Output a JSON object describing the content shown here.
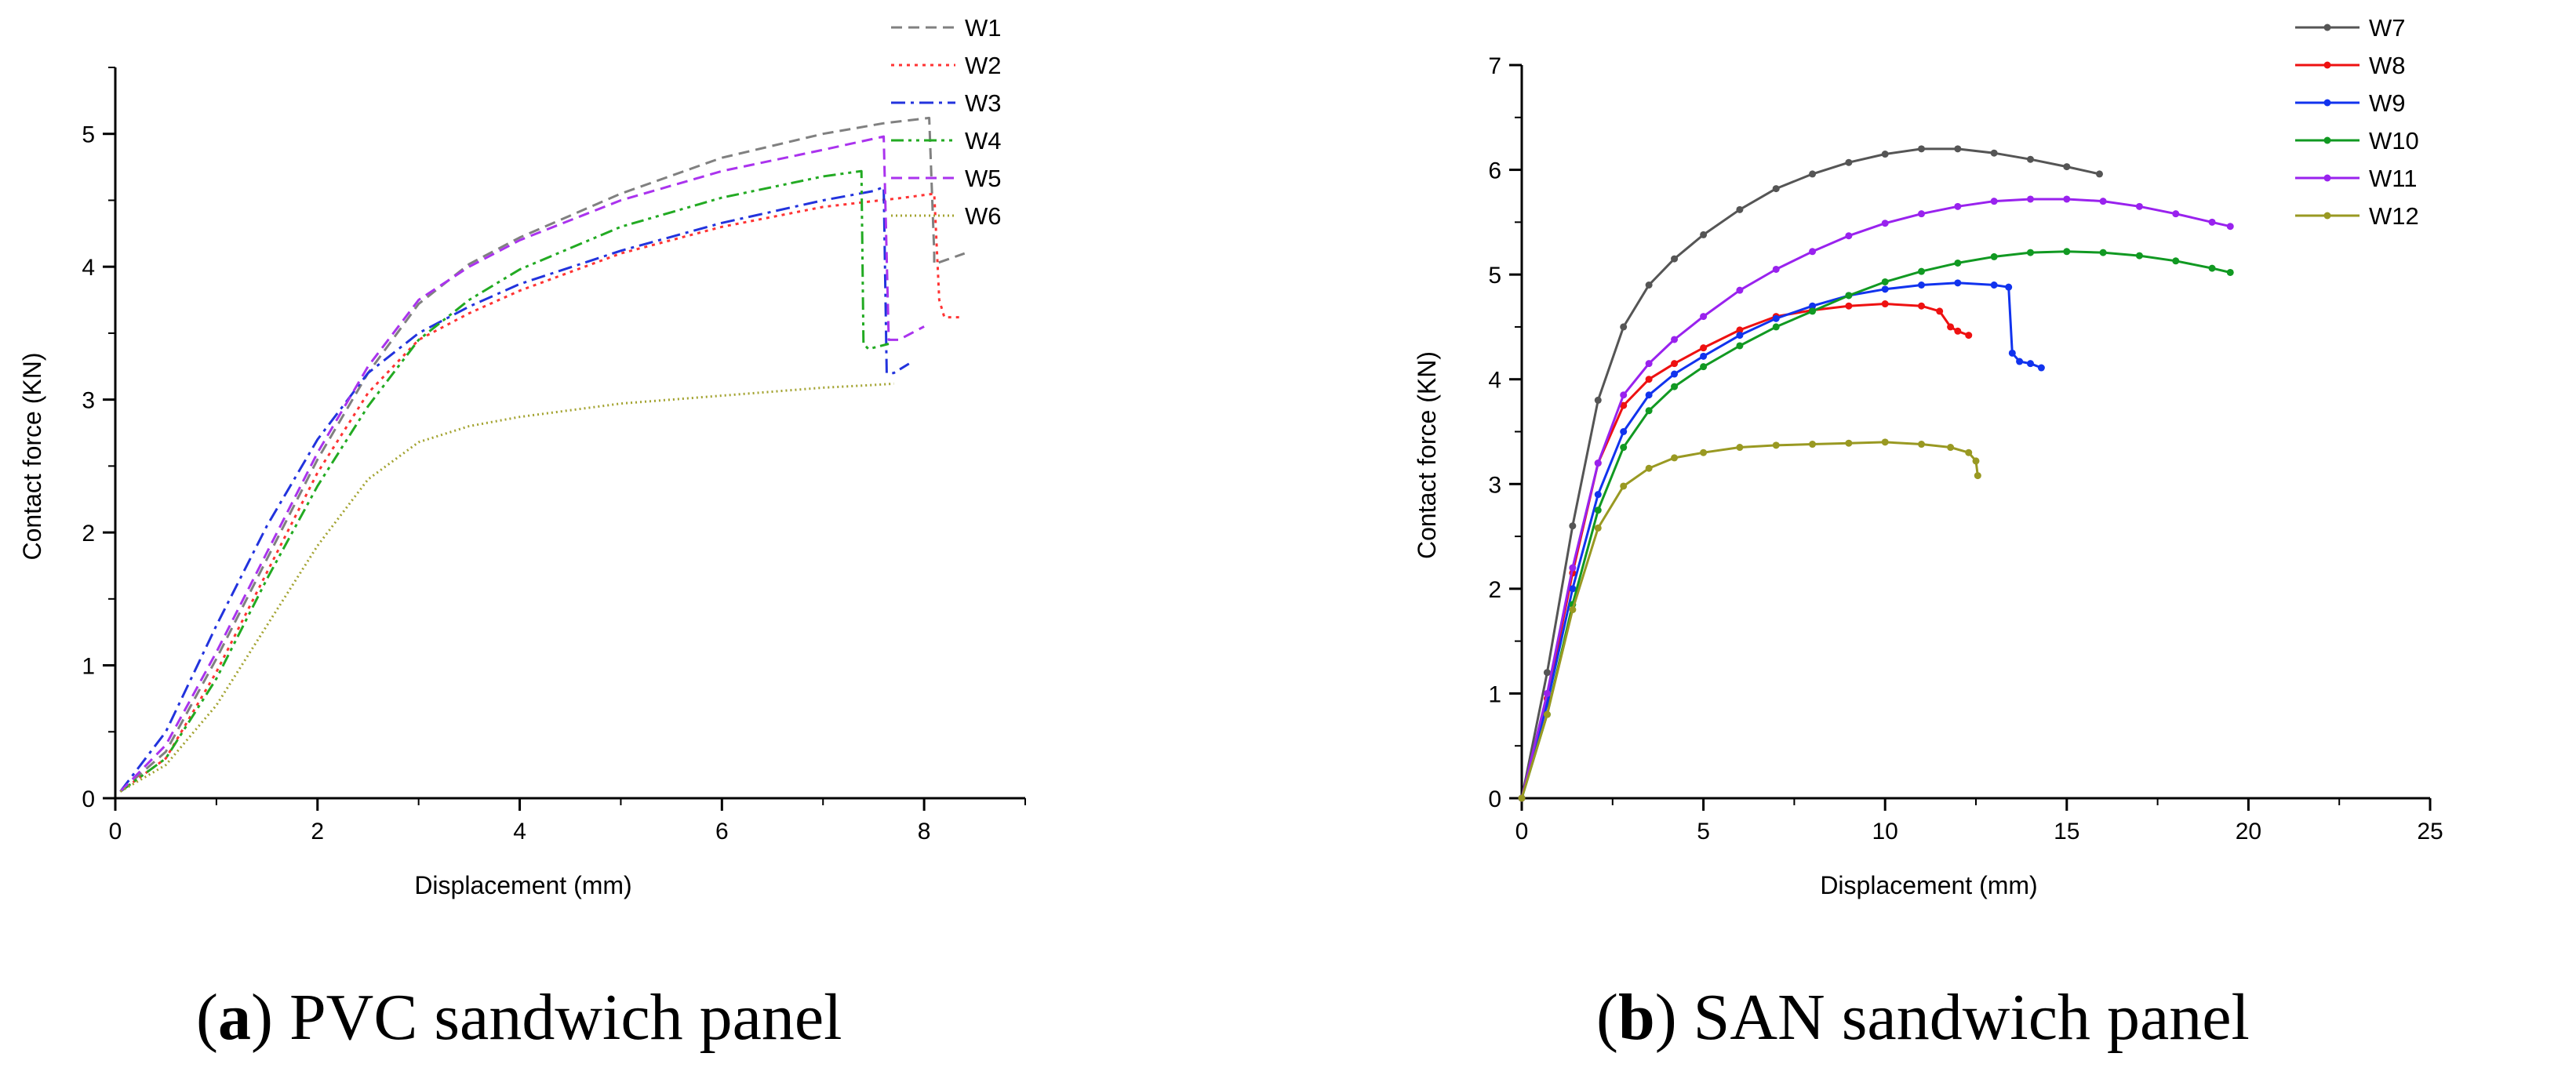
{
  "chart_data": [
    {
      "type": "line",
      "panel": "a",
      "caption": {
        "letter": "a",
        "text": ") PVC sandwich panel"
      },
      "xlabel": "Displacement (mm)",
      "ylabel": "Contact force (KN)",
      "xlim": [
        0,
        9
      ],
      "ylim": [
        0,
        5.5
      ],
      "xticks": [
        0,
        2,
        4,
        6,
        8
      ],
      "yticks": [
        0,
        1,
        2,
        3,
        4,
        5
      ],
      "legend_position": "top-right",
      "series": [
        {
          "name": "W1",
          "color": "#808080",
          "dash": "dashed",
          "marker": false,
          "x": [
            0.05,
            0.5,
            1.0,
            1.5,
            2.0,
            2.5,
            3.0,
            3.5,
            4.0,
            5.0,
            6.0,
            7.0,
            7.6,
            8.05,
            8.1,
            8.1,
            8.4
          ],
          "y": [
            0.05,
            0.35,
            1.05,
            1.8,
            2.55,
            3.2,
            3.72,
            4.02,
            4.22,
            4.55,
            4.82,
            5.0,
            5.08,
            5.12,
            4.1,
            4.02,
            4.1
          ]
        },
        {
          "name": "W2",
          "color": "#ff3333",
          "dash": "dotted",
          "marker": false,
          "x": [
            0.05,
            0.5,
            1.0,
            1.5,
            2.0,
            2.5,
            3.0,
            3.5,
            4.0,
            5.0,
            6.0,
            7.0,
            7.8,
            8.1,
            8.15,
            8.2,
            8.35
          ],
          "y": [
            0.05,
            0.3,
            0.95,
            1.7,
            2.45,
            3.05,
            3.45,
            3.65,
            3.82,
            4.1,
            4.3,
            4.45,
            4.52,
            4.55,
            3.75,
            3.62,
            3.62
          ]
        },
        {
          "name": "W3",
          "color": "#2233dd",
          "dash": "dashdot",
          "marker": false,
          "x": [
            0.05,
            0.5,
            1.0,
            1.5,
            2.0,
            2.5,
            3.0,
            3.5,
            4.0,
            5.0,
            6.0,
            7.0,
            7.5,
            7.6,
            7.63,
            7.7,
            7.85
          ],
          "y": [
            0.05,
            0.5,
            1.3,
            2.05,
            2.7,
            3.2,
            3.5,
            3.7,
            3.87,
            4.12,
            4.33,
            4.5,
            4.57,
            4.6,
            3.2,
            3.2,
            3.27
          ]
        },
        {
          "name": "W4",
          "color": "#22aa22",
          "dash": "dashdotdot",
          "marker": false,
          "x": [
            0.05,
            0.5,
            1.0,
            1.5,
            2.0,
            2.5,
            3.0,
            3.5,
            4.0,
            5.0,
            6.0,
            7.0,
            7.38,
            7.4,
            7.45,
            7.65
          ],
          "y": [
            0.05,
            0.3,
            0.9,
            1.65,
            2.35,
            2.95,
            3.45,
            3.75,
            3.98,
            4.3,
            4.52,
            4.68,
            4.72,
            3.42,
            3.38,
            3.42
          ]
        },
        {
          "name": "W5",
          "color": "#aa33ee",
          "dash": "dashed",
          "marker": false,
          "x": [
            0.05,
            0.5,
            1.0,
            1.5,
            2.0,
            2.5,
            3.0,
            3.5,
            4.0,
            5.0,
            6.0,
            7.0,
            7.6,
            7.65,
            7.75,
            8.0
          ],
          "y": [
            0.05,
            0.4,
            1.1,
            1.85,
            2.6,
            3.25,
            3.75,
            4.0,
            4.2,
            4.5,
            4.72,
            4.88,
            4.98,
            3.45,
            3.45,
            3.55
          ]
        },
        {
          "name": "W6",
          "color": "#a3a330",
          "dash": "finedotted",
          "marker": false,
          "x": [
            0.05,
            0.5,
            1.0,
            1.5,
            2.0,
            2.5,
            3.0,
            3.5,
            4.0,
            5.0,
            6.0,
            7.0,
            7.5,
            7.7
          ],
          "y": [
            0.05,
            0.25,
            0.7,
            1.3,
            1.9,
            2.4,
            2.68,
            2.8,
            2.87,
            2.97,
            3.03,
            3.09,
            3.11,
            3.12
          ]
        }
      ]
    },
    {
      "type": "line",
      "panel": "b",
      "caption": {
        "letter": "b",
        "text": ") SAN sandwich panel"
      },
      "xlabel": "Displacement (mm)",
      "ylabel": "Contact force (KN)",
      "xlim": [
        0,
        25
      ],
      "ylim": [
        0,
        7
      ],
      "xticks": [
        0,
        5,
        10,
        15,
        20,
        25
      ],
      "yticks": [
        0,
        1,
        2,
        3,
        4,
        5,
        6,
        7
      ],
      "legend_position": "top-right",
      "series": [
        {
          "name": "W7",
          "color": "#555555",
          "dash": "solid",
          "marker": true,
          "x": [
            0,
            0.7,
            1.4,
            2.1,
            2.8,
            3.5,
            4.2,
            5.0,
            6.0,
            7.0,
            8.0,
            9.0,
            10.0,
            11.0,
            12.0,
            13.0,
            14.0,
            15.0,
            15.9
          ],
          "y": [
            0,
            1.2,
            2.6,
            3.8,
            4.5,
            4.9,
            5.15,
            5.38,
            5.62,
            5.82,
            5.96,
            6.07,
            6.15,
            6.2,
            6.2,
            6.16,
            6.1,
            6.03,
            5.96
          ]
        },
        {
          "name": "W8",
          "color": "#ee1111",
          "dash": "solid",
          "marker": true,
          "x": [
            0,
            0.7,
            1.4,
            2.1,
            2.8,
            3.5,
            4.2,
            5.0,
            6.0,
            7.0,
            8.0,
            9.0,
            10.0,
            11.0,
            11.5,
            11.8,
            12.0,
            12.3
          ],
          "y": [
            0,
            0.95,
            2.15,
            3.2,
            3.75,
            4.0,
            4.15,
            4.3,
            4.47,
            4.6,
            4.66,
            4.7,
            4.72,
            4.7,
            4.65,
            4.5,
            4.46,
            4.42
          ]
        },
        {
          "name": "W9",
          "color": "#1133ee",
          "dash": "solid",
          "marker": true,
          "x": [
            0,
            0.7,
            1.4,
            2.1,
            2.8,
            3.5,
            4.2,
            5.0,
            6.0,
            7.0,
            8.0,
            9.0,
            10.0,
            11.0,
            12.0,
            13.0,
            13.4,
            13.5,
            13.7,
            14.0,
            14.3
          ],
          "y": [
            0,
            0.9,
            2.0,
            2.9,
            3.5,
            3.85,
            4.05,
            4.22,
            4.42,
            4.58,
            4.7,
            4.8,
            4.86,
            4.9,
            4.92,
            4.9,
            4.88,
            4.25,
            4.17,
            4.15,
            4.11
          ]
        },
        {
          "name": "W10",
          "color": "#119922",
          "dash": "solid",
          "marker": true,
          "x": [
            0,
            0.7,
            1.4,
            2.1,
            2.8,
            3.5,
            4.2,
            5.0,
            6.0,
            7.0,
            8.0,
            9.0,
            10.0,
            11.0,
            12.0,
            13.0,
            14.0,
            15.0,
            16.0,
            17.0,
            18.0,
            19.0,
            19.5
          ],
          "y": [
            0,
            0.8,
            1.85,
            2.75,
            3.35,
            3.7,
            3.93,
            4.12,
            4.32,
            4.5,
            4.65,
            4.8,
            4.93,
            5.03,
            5.11,
            5.17,
            5.21,
            5.22,
            5.21,
            5.18,
            5.13,
            5.06,
            5.02
          ]
        },
        {
          "name": "W11",
          "color": "#9922ee",
          "dash": "solid",
          "marker": true,
          "x": [
            0,
            0.7,
            1.4,
            2.1,
            2.8,
            3.5,
            4.2,
            5.0,
            6.0,
            7.0,
            8.0,
            9.0,
            10.0,
            11.0,
            12.0,
            13.0,
            14.0,
            15.0,
            16.0,
            17.0,
            18.0,
            19.0,
            19.5
          ],
          "y": [
            0,
            1.0,
            2.2,
            3.2,
            3.85,
            4.15,
            4.38,
            4.6,
            4.85,
            5.05,
            5.22,
            5.37,
            5.49,
            5.58,
            5.65,
            5.7,
            5.72,
            5.72,
            5.7,
            5.65,
            5.58,
            5.5,
            5.46
          ]
        },
        {
          "name": "W12",
          "color": "#999922",
          "dash": "solid",
          "marker": true,
          "x": [
            0,
            0.7,
            1.4,
            2.1,
            2.8,
            3.5,
            4.2,
            5.0,
            6.0,
            7.0,
            8.0,
            9.0,
            10.0,
            11.0,
            11.8,
            12.3,
            12.5,
            12.55
          ],
          "y": [
            0,
            0.8,
            1.8,
            2.58,
            2.98,
            3.15,
            3.25,
            3.3,
            3.35,
            3.37,
            3.38,
            3.39,
            3.4,
            3.38,
            3.35,
            3.3,
            3.22,
            3.08
          ]
        }
      ]
    }
  ]
}
